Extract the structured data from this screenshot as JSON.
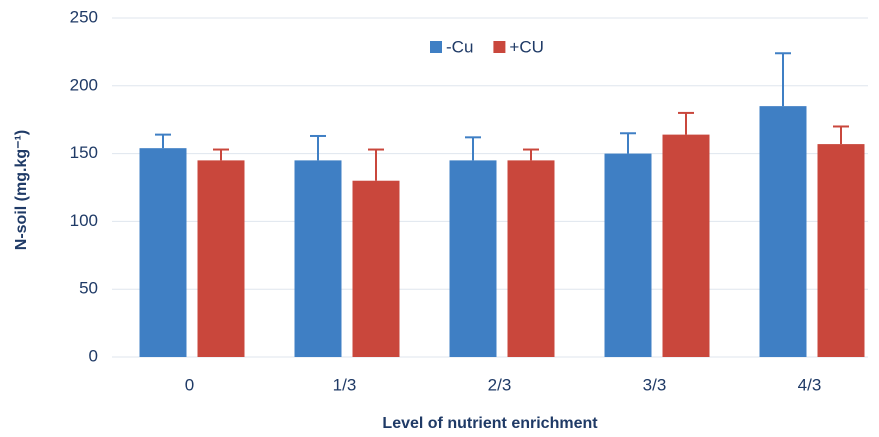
{
  "chart_data": {
    "type": "bar",
    "x_label": "Level of nutrient enrichment",
    "y_label": "N-soil (mg.kg⁻¹)",
    "categories": [
      "0",
      "1/3",
      "2/3",
      "3/3",
      "4/3"
    ],
    "series": [
      {
        "name": "-Cu",
        "color": "#3f7fc4",
        "values": [
          154,
          145,
          145,
          150,
          185
        ],
        "errors": [
          10,
          18,
          17,
          15,
          39
        ]
      },
      {
        "name": "+CU",
        "color": "#c9473c",
        "values": [
          145,
          130,
          145,
          164,
          157
        ],
        "errors": [
          8,
          23,
          8,
          16,
          13
        ]
      }
    ],
    "ylim": [
      0,
      250
    ],
    "yticks": [
      0,
      50,
      100,
      150,
      200,
      250
    ],
    "grid": true,
    "legend": "top"
  }
}
